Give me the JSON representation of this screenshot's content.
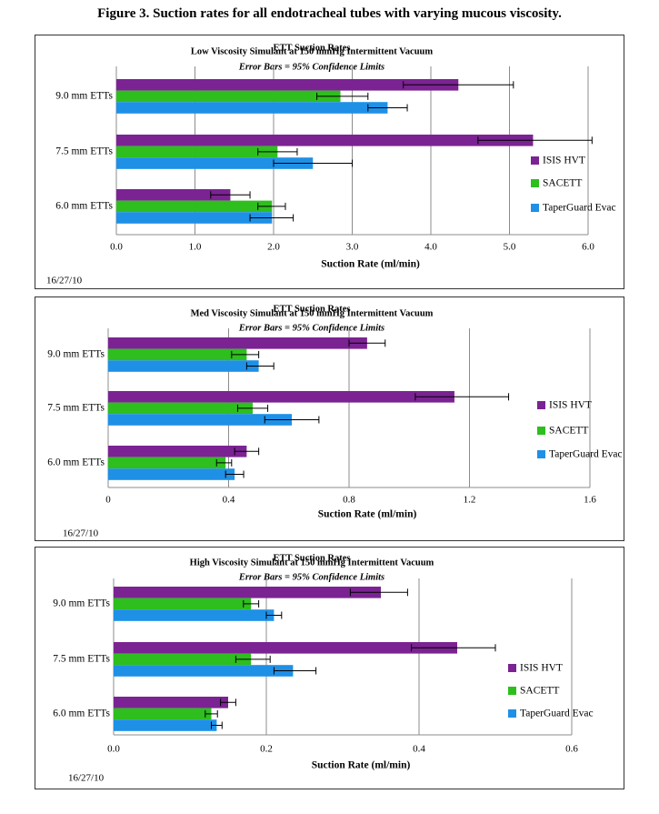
{
  "figure_title": "Figure 3. Suction rates for all endotracheal tubes with varying mucous viscosity.",
  "colors": {
    "isis": "#7B2392",
    "sacett": "#2EBE1E",
    "taperguard": "#1E90E6",
    "grid": "#8c8c8c",
    "error": "#000000"
  },
  "chart_data": [
    {
      "type": "bar",
      "orientation": "horizontal",
      "title": "ETT Suction Rates",
      "subtitle": "Low Viscosity Simulant at 150 mmHg Intermittent Vacuum",
      "note": "Error Bars = 95% Confidence Limits",
      "xlabel": "Suction Rate (ml/min)",
      "xlim": [
        0,
        6.0
      ],
      "xticks": [
        "0.0",
        "1.0",
        "2.0",
        "3.0",
        "4.0",
        "5.0",
        "6.0"
      ],
      "xtick_values": [
        0,
        1,
        2,
        3,
        4,
        5,
        6
      ],
      "grid": true,
      "legend_position": "right",
      "date": "16/27/10",
      "categories": [
        "9.0 mm ETTs",
        "7.5 mm ETTs",
        "6.0 mm ETTs"
      ],
      "series": [
        {
          "name": "ISIS HVT",
          "color": "#7B2392",
          "values": [
            4.35,
            5.3,
            1.45
          ],
          "err_low": [
            3.65,
            4.6,
            1.2
          ],
          "err_high": [
            5.05,
            6.05,
            1.7
          ]
        },
        {
          "name": "SACETT",
          "color": "#2EBE1E",
          "values": [
            2.85,
            2.05,
            1.98
          ],
          "err_low": [
            2.55,
            1.8,
            1.8
          ],
          "err_high": [
            3.2,
            2.3,
            2.15
          ]
        },
        {
          "name": "TaperGuard Evac",
          "color": "#1E90E6",
          "values": [
            3.45,
            2.5,
            1.98
          ],
          "err_low": [
            3.2,
            2.0,
            1.7
          ],
          "err_high": [
            3.7,
            3.0,
            2.25
          ]
        }
      ]
    },
    {
      "type": "bar",
      "orientation": "horizontal",
      "title": "ETT Suction Rates",
      "subtitle": "Med Viscosity Simulant at 150 mmHg Intermittent Vacuum",
      "note": "Error Bars = 95% Confidence Limits",
      "xlabel": "Suction Rate (ml/min)",
      "xlim": [
        0,
        1.6
      ],
      "xticks": [
        "0",
        "0.4",
        "0.8",
        "1.2",
        "1.6"
      ],
      "xtick_values": [
        0,
        0.4,
        0.8,
        1.2,
        1.6
      ],
      "grid": true,
      "legend_position": "right",
      "date": "16/27/10",
      "categories": [
        "9.0 mm ETTs",
        "7.5 mm ETTs",
        "6.0 mm ETTs"
      ],
      "series": [
        {
          "name": "ISIS HVT",
          "color": "#7B2392",
          "values": [
            0.86,
            1.15,
            0.46
          ],
          "err_low": [
            0.8,
            1.02,
            0.42
          ],
          "err_high": [
            0.92,
            1.33,
            0.5
          ]
        },
        {
          "name": "SACETT",
          "color": "#2EBE1E",
          "values": [
            0.46,
            0.48,
            0.39
          ],
          "err_low": [
            0.41,
            0.43,
            0.36
          ],
          "err_high": [
            0.5,
            0.53,
            0.41
          ]
        },
        {
          "name": "TaperGuard Evac",
          "color": "#1E90E6",
          "values": [
            0.5,
            0.61,
            0.42
          ],
          "err_low": [
            0.46,
            0.52,
            0.39
          ],
          "err_high": [
            0.55,
            0.7,
            0.45
          ]
        }
      ]
    },
    {
      "type": "bar",
      "orientation": "horizontal",
      "title": "ETT Suction Rates",
      "subtitle": "High Viscosity Simulant at 150 mmHg Intermittent Vacuum",
      "note": "Error Bars = 95% Confidence Limits",
      "xlabel": "Suction Rate (ml/min)",
      "xlim": [
        0,
        0.6
      ],
      "xticks": [
        "0.0",
        "0.2",
        "0.4",
        "0.6"
      ],
      "xtick_values": [
        0,
        0.2,
        0.4,
        0.6
      ],
      "grid": true,
      "legend_position": "right",
      "date": "16/27/10",
      "categories": [
        "9.0 mm ETTs",
        "7.5 mm ETTs",
        "6.0 mm ETTs"
      ],
      "series": [
        {
          "name": "ISIS HVT",
          "color": "#7B2392",
          "values": [
            0.35,
            0.45,
            0.15
          ],
          "err_low": [
            0.31,
            0.39,
            0.14
          ],
          "err_high": [
            0.385,
            0.5,
            0.16
          ]
        },
        {
          "name": "SACETT",
          "color": "#2EBE1E",
          "values": [
            0.18,
            0.18,
            0.128
          ],
          "err_low": [
            0.17,
            0.16,
            0.12
          ],
          "err_high": [
            0.19,
            0.205,
            0.136
          ]
        },
        {
          "name": "TaperGuard Evac",
          "color": "#1E90E6",
          "values": [
            0.21,
            0.235,
            0.135
          ],
          "err_low": [
            0.2,
            0.21,
            0.128
          ],
          "err_high": [
            0.22,
            0.265,
            0.142
          ]
        }
      ]
    }
  ]
}
